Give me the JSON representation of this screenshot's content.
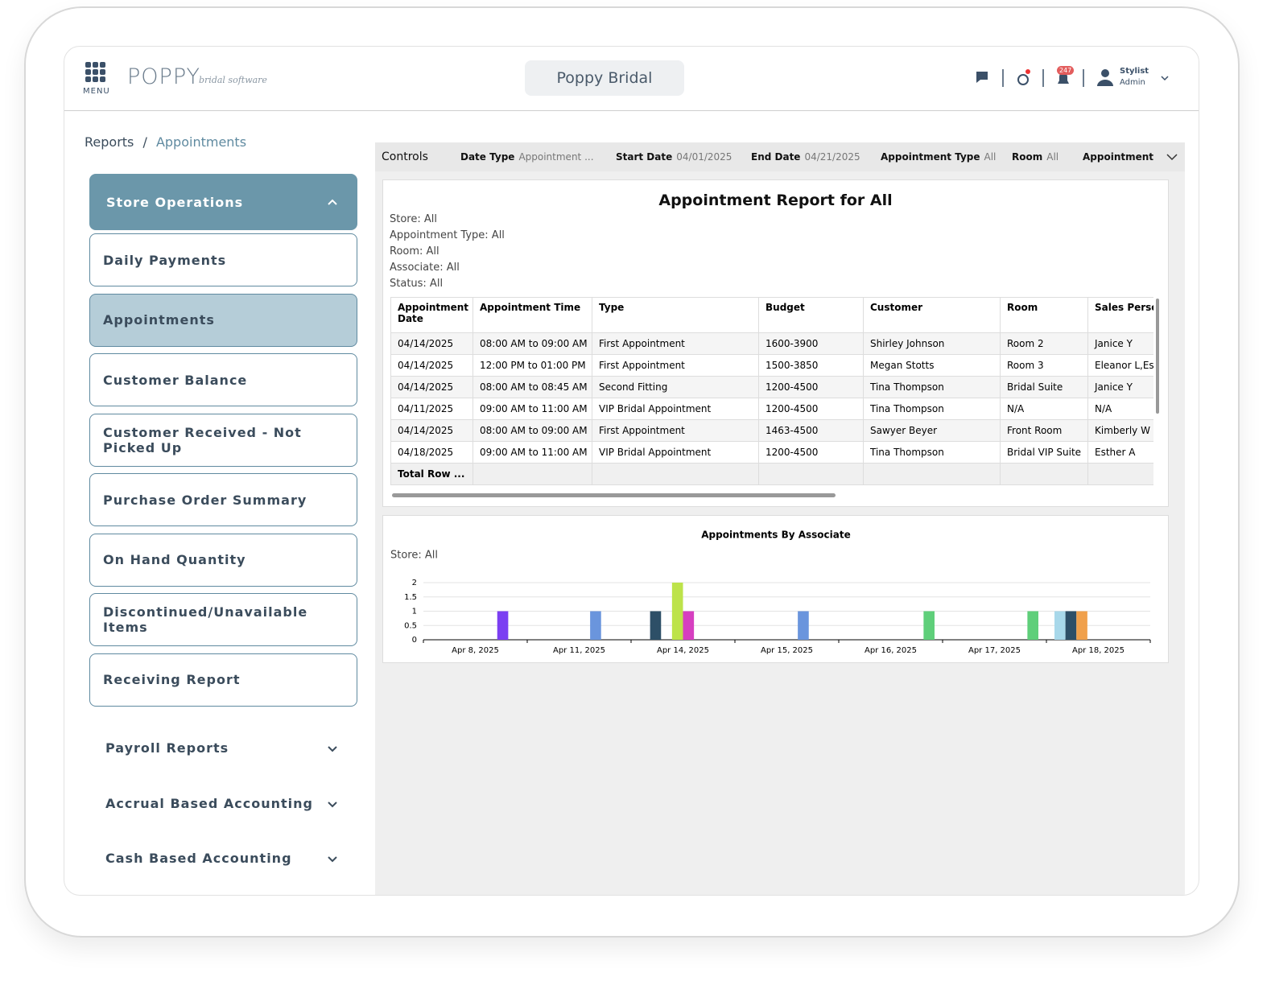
{
  "header": {
    "menu_label": "MENU",
    "logo": "POPPY",
    "logo_tagline": "bridal software",
    "store_name": "Poppy Bridal",
    "notification_count": 247,
    "user_role": "Stylist",
    "user_level": "Admin"
  },
  "breadcrumb": {
    "items": [
      "Reports",
      "Appointments"
    ],
    "separator": "/"
  },
  "sidebar": {
    "sections": [
      {
        "title": "Store Operations",
        "items": [
          "Daily Payments",
          "Appointments",
          "Customer Balance",
          "Customer Received - Not Picked Up",
          "Purchase Order Summary",
          "On Hand Quantity",
          "Discontinued/Unavailable Items",
          "Receiving Report"
        ]
      },
      {
        "title": "Payroll Reports"
      },
      {
        "title": "Accrual Based Accounting"
      },
      {
        "title": "Cash Based Accounting"
      }
    ]
  },
  "controls": {
    "label": "Controls",
    "filters": [
      {
        "label": "Date Type",
        "value": "Appointment ..."
      },
      {
        "label": "Start Date",
        "value": "04/01/2025"
      },
      {
        "label": "End Date",
        "value": "04/21/2025"
      },
      {
        "label": "Appointment Type",
        "value": "All"
      },
      {
        "label": "Room",
        "value": "All"
      },
      {
        "label": "Appointment"
      }
    ]
  },
  "report": {
    "title": "Appointment Report for All",
    "criteria": [
      "Store: All",
      "Appointment Type: All",
      "Room: All",
      "Associate: All",
      "Status: All"
    ],
    "table": {
      "columns": [
        "Appointment Date",
        "Appointment Time",
        "Type",
        "Budget",
        "Customer",
        "Room",
        "Sales Person"
      ],
      "rows": [
        [
          "04/14/2025",
          "08:00 AM to 09:00 AM",
          "First Appointment",
          "1600-3900",
          "Shirley Johnson",
          "Room 2",
          "Janice Y"
        ],
        [
          "04/14/2025",
          "12:00 PM to 01:00 PM",
          "First Appointment",
          "1500-3850",
          "Megan Stotts",
          "Room 3",
          "Eleanor L,Esth"
        ],
        [
          "04/14/2025",
          "08:00 AM to 08:45 AM",
          "Second Fitting",
          "1200-4500",
          "Tina Thompson",
          "Bridal Suite",
          "Janice Y"
        ],
        [
          "04/11/2025",
          "09:00 AM to 11:00 AM",
          "VIP Bridal Appointment",
          "1200-4500",
          "Tina Thompson",
          "N/A",
          "N/A"
        ],
        [
          "04/14/2025",
          "08:00 AM to 09:00 AM",
          "First Appointment",
          "1463-4500",
          "Sawyer Beyer",
          "Front Room",
          "Kimberly W"
        ],
        [
          "04/18/2025",
          "09:00 AM to 11:00 AM",
          "VIP Bridal Appointment",
          "1200-4500",
          "Tina Thompson",
          "Bridal VIP Suite",
          "Esther A"
        ]
      ],
      "total_label": "Total Row ..."
    }
  },
  "chart_data": {
    "type": "bar",
    "title": "Appointments By Associate",
    "subtitle": "Store: All",
    "categories": [
      "Apr 8, 2025",
      "Apr 11, 2025",
      "Apr 14, 2025",
      "Apr 15, 2025",
      "Apr 16, 2025",
      "Apr 17, 2025",
      "Apr 18, 2025"
    ],
    "series": [
      {
        "color": "#a8d8ea",
        "values": [
          null,
          null,
          null,
          null,
          null,
          null,
          1
        ]
      },
      {
        "color": "#2d4f67",
        "values": [
          null,
          null,
          1,
          null,
          null,
          null,
          1
        ]
      },
      {
        "color": "#f0a04b",
        "values": [
          null,
          null,
          null,
          null,
          null,
          null,
          1
        ]
      },
      {
        "color": "#bde34a",
        "values": [
          null,
          null,
          2,
          null,
          null,
          null,
          null
        ]
      },
      {
        "color": "#d63fc0",
        "values": [
          null,
          null,
          1,
          null,
          null,
          null,
          null
        ]
      },
      {
        "color": "#6a95dd",
        "values": [
          null,
          1,
          null,
          1,
          null,
          null,
          null
        ]
      },
      {
        "color": "#7b3ff2",
        "values": [
          1,
          null,
          null,
          null,
          null,
          null,
          null
        ]
      },
      {
        "color": "#5fcf7a",
        "values": [
          null,
          null,
          null,
          null,
          1,
          1,
          null
        ]
      }
    ],
    "ylim": [
      0,
      2
    ],
    "yticks": [
      0,
      0.5,
      1,
      1.5,
      2
    ],
    "grid": true
  }
}
